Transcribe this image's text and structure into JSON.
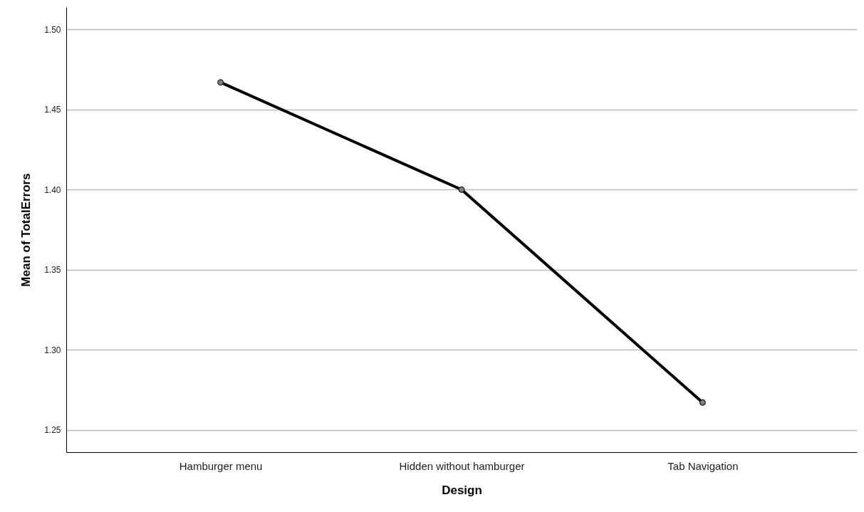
{
  "chart_data": {
    "type": "line",
    "xlabel": "Design",
    "ylabel": "Mean of TotalErrors",
    "categories": [
      "Hamburger menu",
      "Hidden without hamburger",
      "Tab Navigation"
    ],
    "series": [
      {
        "color": "#000000",
        "values": [
          1.467,
          1.4,
          1.267
        ]
      }
    ],
    "ylim": [
      1.236,
      1.514
    ],
    "yticks": [
      {
        "value": 1.25,
        "label": "1.25"
      },
      {
        "value": 1.3,
        "label": "1.30"
      },
      {
        "value": 1.35,
        "label": "1.35"
      },
      {
        "value": 1.4,
        "label": "1.40"
      },
      {
        "value": 1.45,
        "label": "1.45"
      },
      {
        "value": 1.5,
        "label": "1.50"
      }
    ],
    "grid": "y",
    "marker": "circle"
  }
}
